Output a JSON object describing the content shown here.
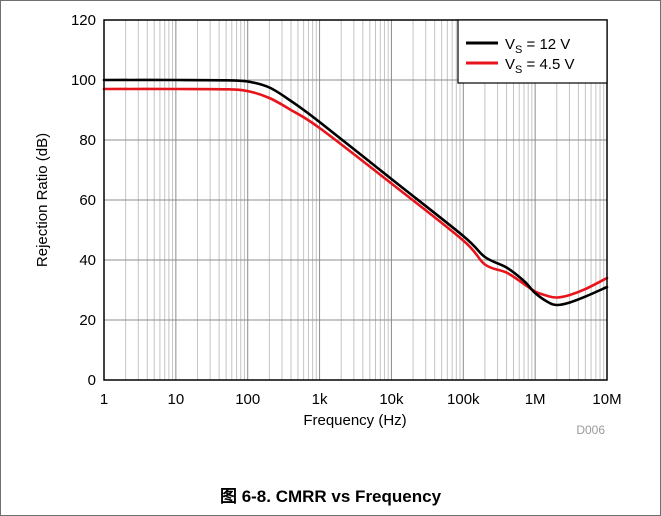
{
  "chart_data": {
    "type": "line",
    "x_scale": "log",
    "xlabel": "Frequency (Hz)",
    "ylabel": "Rejection Ratio (dB)",
    "xlim": [
      1,
      10000000
    ],
    "ylim": [
      0,
      120
    ],
    "x_ticks": [
      1,
      10,
      100,
      1000,
      10000,
      100000,
      1000000,
      10000000
    ],
    "x_tick_labels": [
      "1",
      "10",
      "100",
      "1k",
      "10k",
      "100k",
      "1M",
      "10M"
    ],
    "y_ticks": [
      0,
      20,
      40,
      60,
      80,
      100,
      120
    ],
    "y_tick_labels": [
      "0",
      "20",
      "40",
      "60",
      "80",
      "100",
      "120"
    ],
    "grid": true,
    "legend_position": "top-right",
    "series": [
      {
        "label_main": "V",
        "label_sub": "S",
        "label_rest": " = 12 V",
        "color": "#000000",
        "x": [
          1,
          10,
          50,
          100,
          200,
          400,
          1000,
          10000,
          100000,
          200000,
          400000,
          700000,
          1000000,
          1500000,
          2000000,
          3000000,
          5000000,
          10000000
        ],
        "y": [
          100,
          100,
          99.9,
          99.5,
          97.5,
          93,
          86,
          67,
          48,
          41,
          37.5,
          33,
          29,
          26,
          25,
          25.8,
          27.8,
          31
        ]
      },
      {
        "label_main": "V",
        "label_sub": "S",
        "label_rest": " = 4.5 V",
        "color": "#e8141c",
        "x": [
          1,
          10,
          50,
          100,
          200,
          400,
          1000,
          10000,
          100000,
          200000,
          400000,
          700000,
          1000000,
          1500000,
          2000000,
          3000000,
          5000000,
          10000000
        ],
        "y": [
          97,
          97,
          96.9,
          96.3,
          94,
          90,
          84,
          65.5,
          46.5,
          38.5,
          35.8,
          32,
          29.5,
          28,
          27.5,
          28.3,
          30.3,
          34
        ]
      }
    ],
    "annotations": [
      "D006"
    ]
  },
  "caption": {
    "prefix": "图",
    "text": " 6-8. CMRR vs Frequency"
  }
}
